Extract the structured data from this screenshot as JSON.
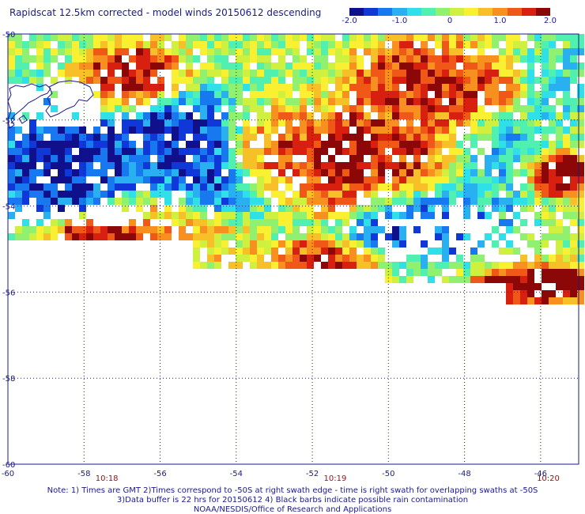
{
  "title": "Rapidscat 12.5km corrected - model winds 20150612 descending",
  "colorbar": {
    "colors": [
      "#10108c",
      "#1038d8",
      "#1878f0",
      "#28b0f0",
      "#30e0e8",
      "#50f0b0",
      "#90f070",
      "#d0f040",
      "#f8f030",
      "#f8c028",
      "#f89020",
      "#f05818",
      "#d82010",
      "#8c0808"
    ],
    "ticks": [
      {
        "label": "-2.0",
        "value": -2.0
      },
      {
        "label": "-1.0",
        "value": -1.0
      },
      {
        "label": "0",
        "value": 0
      },
      {
        "label": "1.0",
        "value": 1.0
      },
      {
        "label": "2.0",
        "value": 2.0
      }
    ],
    "range": [
      -2.0,
      2.0
    ]
  },
  "map": {
    "lat_ticks": [
      {
        "label": "-50",
        "value": -50
      },
      {
        "label": "-52",
        "value": -52
      },
      {
        "label": "-54",
        "value": -54
      },
      {
        "label": "-56",
        "value": -56
      },
      {
        "label": "-58",
        "value": -58
      },
      {
        "label": "-60",
        "value": -60
      }
    ],
    "lon_ticks": [
      {
        "label": "-60",
        "value": -60
      },
      {
        "label": "-58",
        "value": -58
      },
      {
        "label": "-56",
        "value": -56
      },
      {
        "label": "-54",
        "value": -54
      },
      {
        "label": "-52",
        "value": -52
      },
      {
        "label": "-50",
        "value": -50
      },
      {
        "label": "-48",
        "value": -48
      },
      {
        "label": "-46",
        "value": -46
      }
    ],
    "lon_range": [
      -60,
      -45
    ],
    "lat_range": [
      -60,
      -50
    ],
    "grid": true,
    "times": [
      {
        "label": "10:18",
        "lon": -57.4
      },
      {
        "label": "10:19",
        "lon": -51.4
      },
      {
        "label": "10:20",
        "lon": -45.8
      }
    ]
  },
  "notes": [
    "Note: 1) Times are GMT 2)Times correspond to -50S at right swath edge - time is right swath for overlapping swaths at -50S",
    "3)Data buffer is 22 hrs for 20150612 4) Black barbs indicate possible rain contamination",
    "NOAA/NESDIS/Office of Research and Applications"
  ]
}
